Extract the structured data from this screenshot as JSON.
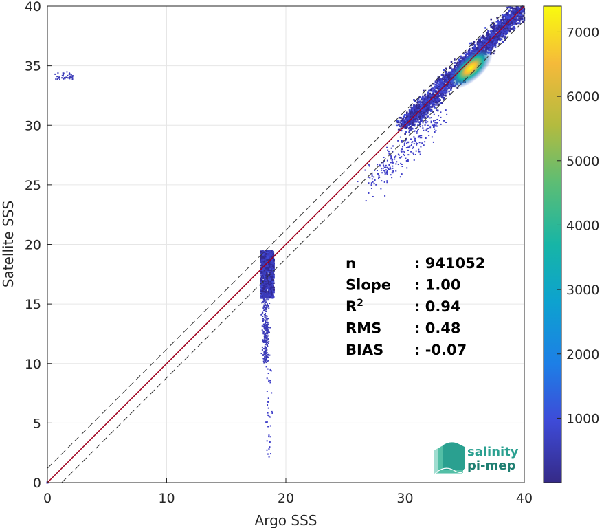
{
  "chart_data": {
    "type": "heatmap",
    "xlabel": "Argo SSS",
    "ylabel": "Satellite SSS",
    "xlim": [
      0,
      40
    ],
    "ylim": [
      0,
      40
    ],
    "x_ticks": [
      "0",
      "10",
      "20",
      "30",
      "40"
    ],
    "y_ticks": [
      "0",
      "5",
      "10",
      "15",
      "20",
      "25",
      "30",
      "35",
      "40"
    ],
    "grid": true,
    "reference_lines": [
      {
        "kind": "identity",
        "intercept": 0,
        "color": "#a0001e"
      },
      {
        "kind": "offset",
        "intercept": 1.2,
        "style": "dashed",
        "color": "#333333"
      },
      {
        "kind": "offset",
        "intercept": -1.2,
        "style": "dashed",
        "color": "#333333"
      }
    ],
    "density_clusters": [
      {
        "x_range": [
          28,
          40
        ],
        "y_range": [
          27,
          40
        ],
        "peak": [
          35.5,
          34.8
        ],
        "max_count": 7400
      },
      {
        "x_range": [
          17.5,
          19
        ],
        "y_range": [
          10,
          19.5
        ],
        "peak": [
          18.5,
          17.2
        ],
        "max_count": 900
      },
      {
        "x_range": [
          1,
          2
        ],
        "y_range": [
          33.8,
          34.4
        ],
        "peak": [
          1.7,
          34.1
        ],
        "max_count": 200
      }
    ],
    "colorbar": {
      "min": 1,
      "max": 7400,
      "ticks": [
        "1000",
        "2000",
        "3000",
        "4000",
        "5000",
        "6000",
        "7000"
      ],
      "tick_values": [
        1000,
        2000,
        3000,
        4000,
        5000,
        6000,
        7000
      ],
      "colormap": "parula"
    },
    "stats": [
      {
        "label": "n",
        "value": ": 941052"
      },
      {
        "label": "Slope",
        "value": ": 1.00"
      },
      {
        "label": "R",
        "sup": "2",
        "value": ": 0.94"
      },
      {
        "label": "RMS",
        "value": ": 0.48"
      },
      {
        "label": "BIAS",
        "value": ": -0.07"
      }
    ]
  },
  "logo": {
    "line1": "salinity",
    "line2": "pi-mep",
    "color": "#2aa090"
  }
}
